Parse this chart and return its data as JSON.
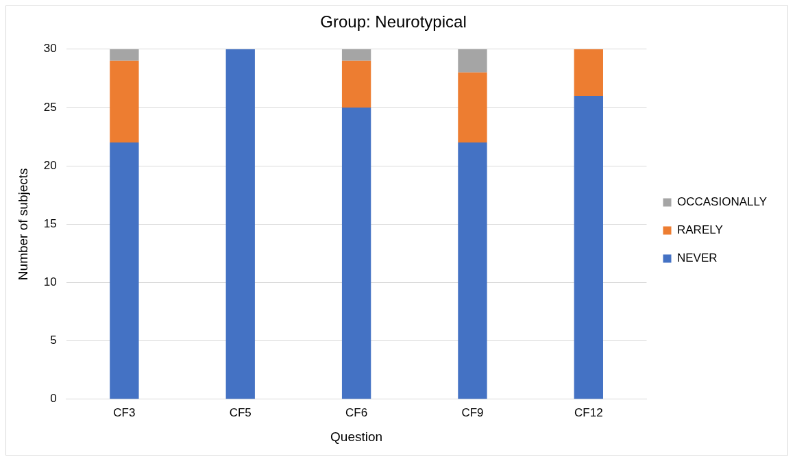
{
  "chart_data": {
    "type": "bar",
    "title": "Group: Neurotypical",
    "xlabel": "Question",
    "ylabel": "Number of subjects",
    "categories": [
      "CF3",
      "CF5",
      "CF6",
      "CF9",
      "CF12"
    ],
    "series": [
      {
        "name": "NEVER",
        "color": "#4472c4",
        "values": [
          22,
          30,
          25,
          22,
          26
        ]
      },
      {
        "name": "RARELY",
        "color": "#ed7d31",
        "values": [
          7,
          0,
          4,
          6,
          4
        ]
      },
      {
        "name": "OCCASIONALLY",
        "color": "#a5a5a5",
        "values": [
          1,
          0,
          1,
          2,
          0
        ]
      }
    ],
    "stacked": true,
    "ylim": [
      0,
      30
    ],
    "yticks": [
      0,
      5,
      10,
      15,
      20,
      25,
      30
    ],
    "grid": "y",
    "legend": "right"
  }
}
